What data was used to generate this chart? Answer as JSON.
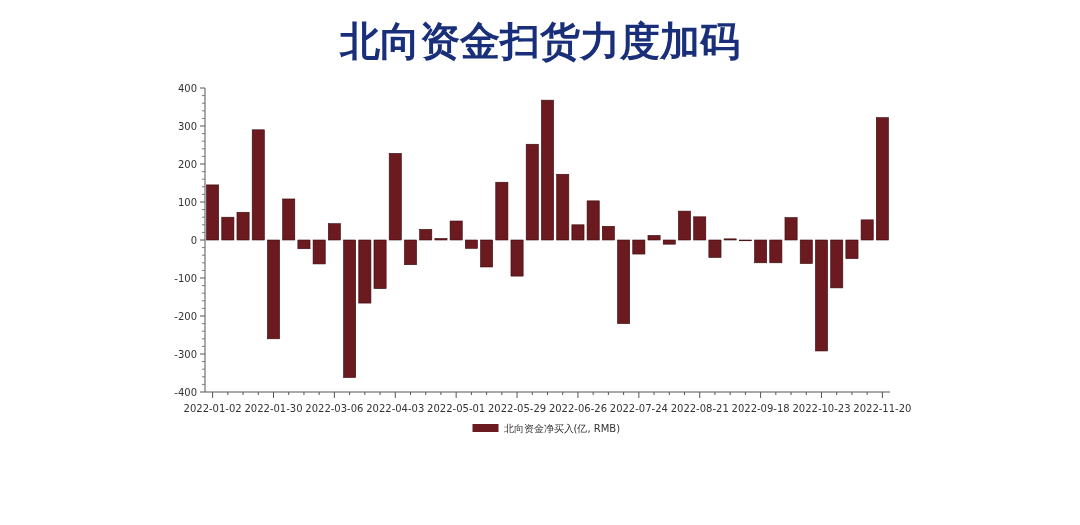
{
  "chart_data": {
    "type": "bar",
    "title": "北向资金扫货力度加码",
    "categories": [
      "2022-01-02",
      null,
      null,
      null,
      "2022-01-30",
      null,
      null,
      null,
      "2022-03-06",
      null,
      null,
      null,
      "2022-04-03",
      null,
      null,
      null,
      "2022-05-01",
      null,
      null,
      null,
      "2022-05-29",
      null,
      null,
      null,
      "2022-06-26",
      null,
      null,
      null,
      "2022-07-24",
      null,
      null,
      null,
      "2022-08-21",
      null,
      null,
      null,
      "2022-09-18",
      null,
      null,
      null,
      "2022-10-23",
      null,
      null,
      null,
      "2022-11-20"
    ],
    "series": [
      {
        "name": "北向资金净买入(亿, RMB)",
        "color": "#6b1a1f",
        "values": [
          145,
          60,
          73,
          290,
          -260,
          108,
          -23,
          -63,
          43,
          -362,
          -166,
          -128,
          228,
          -65,
          28,
          4,
          50,
          -22,
          -71,
          152,
          -95,
          252,
          368,
          173,
          40,
          103,
          36,
          -220,
          -37,
          12,
          -11,
          76,
          61,
          -46,
          3,
          -2,
          -60,
          -60,
          59,
          -62,
          -292,
          -126,
          -49,
          53,
          322
        ]
      }
    ],
    "ylim": [
      -400,
      400
    ],
    "yticks": [
      -400,
      -300,
      -200,
      -100,
      0,
      100,
      200,
      300,
      400
    ],
    "grid": false,
    "legend": "bottom"
  }
}
